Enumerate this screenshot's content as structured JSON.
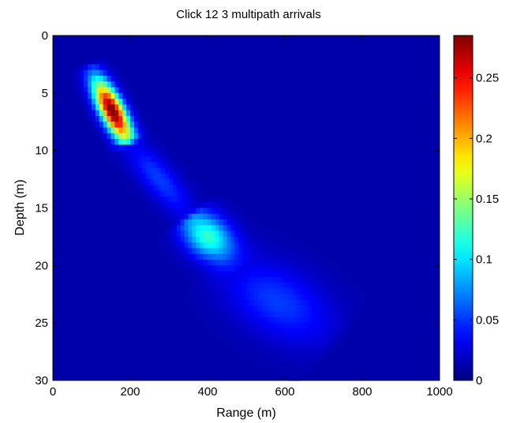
{
  "chart_data": {
    "type": "heatmap",
    "title": "Click 12 3 multipath arrivals",
    "xlabel": "Range (m)",
    "ylabel": "Depth (m)",
    "xlim": [
      0,
      1000
    ],
    "ylim": [
      0,
      30
    ],
    "y_reversed": true,
    "xticks": [
      {
        "value": 0,
        "label": "0"
      },
      {
        "value": 200,
        "label": "200"
      },
      {
        "value": 400,
        "label": "400"
      },
      {
        "value": 600,
        "label": "600"
      },
      {
        "value": 800,
        "label": "800"
      },
      {
        "value": 1000,
        "label": "1000"
      }
    ],
    "yticks": [
      {
        "value": 0,
        "label": "0"
      },
      {
        "value": 5,
        "label": "5"
      },
      {
        "value": 10,
        "label": "10"
      },
      {
        "value": 15,
        "label": "15"
      },
      {
        "value": 20,
        "label": "20"
      },
      {
        "value": 25,
        "label": "25"
      },
      {
        "value": 30,
        "label": "30"
      }
    ],
    "colorbar": {
      "colormap": "jet",
      "clim": [
        0,
        0.285
      ],
      "ticks": [
        {
          "value": 0,
          "label": "0"
        },
        {
          "value": 0.05,
          "label": "0.05"
        },
        {
          "value": 0.1,
          "label": "0.1"
        },
        {
          "value": 0.15,
          "label": "0.15"
        },
        {
          "value": 0.2,
          "label": "0.2"
        },
        {
          "value": 0.25,
          "label": "0.25"
        }
      ]
    },
    "arrivals": [
      {
        "range_start": 100,
        "depth_start": 3,
        "range_end": 190,
        "depth_end": 9,
        "peak_range": 160,
        "peak_depth": 6.5,
        "peak": 0.28,
        "width_m": 30
      },
      {
        "range_start": 190,
        "depth_start": 9,
        "range_end": 360,
        "depth_end": 16,
        "peak_range": 275,
        "peak_depth": 12.5,
        "peak": 0.04,
        "width_m": 40
      },
      {
        "range_start": 360,
        "depth_start": 16,
        "range_end": 470,
        "depth_end": 20,
        "peak_range": 400,
        "peak_depth": 17.5,
        "peak": 0.11,
        "width_m": 55
      },
      {
        "range_start": 440,
        "depth_start": 20,
        "range_end": 710,
        "depth_end": 26,
        "peak_range": 560,
        "peak_depth": 24,
        "peak": 0.04,
        "width_m": 90
      }
    ],
    "background_value": 0.012
  }
}
